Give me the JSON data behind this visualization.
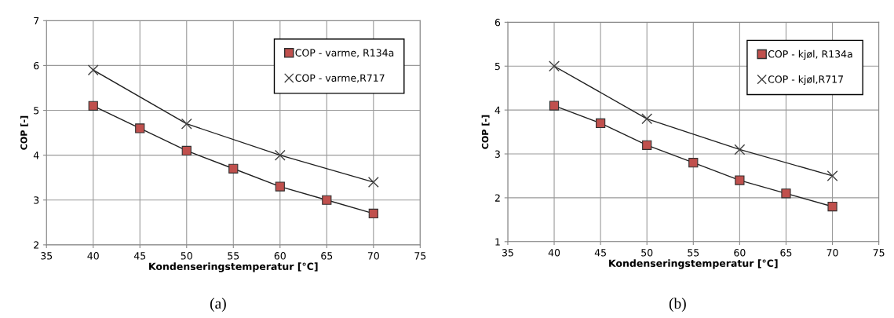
{
  "chart_data": [
    {
      "type": "line",
      "xlabel": "Kondenseringstemperatur [°C]",
      "ylabel": "COP [-]",
      "xlim": [
        35,
        75
      ],
      "xticks": [
        35,
        40,
        45,
        50,
        55,
        60,
        65,
        70,
        75
      ],
      "ylim": [
        2,
        7
      ],
      "yticks": [
        2,
        3,
        4,
        5,
        6,
        7
      ],
      "grid": true,
      "legend": "top right",
      "annotations": [
        "(a)"
      ],
      "series": [
        {
          "name": "COP - varme, R134a",
          "color": "#c0504d",
          "marker": "square",
          "x": [
            40,
            45,
            50,
            55,
            60,
            65,
            70
          ],
          "values": [
            5.1,
            4.6,
            4.1,
            3.7,
            3.3,
            3.0,
            2.7
          ]
        },
        {
          "name": "COP - varme,R717",
          "color": "#404040",
          "marker": "cross",
          "x": [
            40,
            50,
            60,
            70
          ],
          "values": [
            5.9,
            4.7,
            4.0,
            3.4
          ]
        }
      ]
    },
    {
      "type": "line",
      "xlabel": "Kondenseringstemperatur [°C]",
      "ylabel": "COP [-]",
      "xlim": [
        35,
        75
      ],
      "xticks": [
        35,
        40,
        45,
        50,
        55,
        60,
        65,
        70,
        75
      ],
      "ylim": [
        1,
        6
      ],
      "yticks": [
        1,
        2,
        3,
        4,
        5,
        6
      ],
      "grid": true,
      "legend": "top right",
      "annotations": [
        "(b)"
      ],
      "series": [
        {
          "name": "COP - kjøl, R134a",
          "color": "#c0504d",
          "marker": "square",
          "x": [
            40,
            45,
            50,
            55,
            60,
            65,
            70
          ],
          "values": [
            4.1,
            3.7,
            3.2,
            2.8,
            2.4,
            2.1,
            1.8
          ]
        },
        {
          "name": "COP - kjøl,R717",
          "color": "#404040",
          "marker": "cross",
          "x": [
            40,
            50,
            60,
            70
          ],
          "values": [
            5.0,
            3.8,
            3.1,
            2.5
          ]
        }
      ]
    }
  ]
}
